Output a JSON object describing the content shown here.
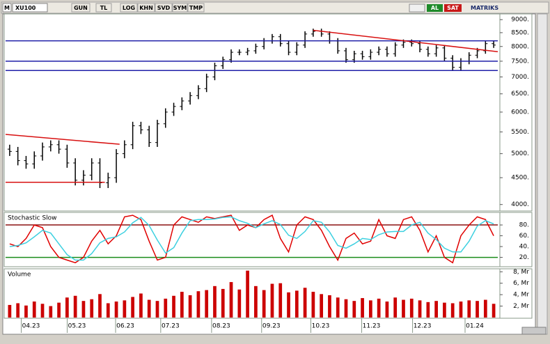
{
  "toolbar": {
    "symbol_menu": "M",
    "symbol": "XU100",
    "buttons": [
      "GUN",
      "TL",
      "LOG",
      "KHN",
      "SVD",
      "SYM",
      "TMP"
    ],
    "buy": "AL",
    "sell": "SAT",
    "brand": "MATRIKS"
  },
  "chart_data": [
    {
      "type": "ohlc",
      "color": "#000000",
      "log_scale": true,
      "xlim": [
        -0.5,
        59.5
      ],
      "ylim": [
        3900,
        9200
      ],
      "yticks": [
        {
          "value": 4000,
          "label": "4000."
        },
        {
          "value": 4500,
          "label": "4500."
        },
        {
          "value": 5000,
          "label": "5000."
        },
        {
          "value": 5500,
          "label": "5500."
        },
        {
          "value": 6000,
          "label": "6000."
        },
        {
          "value": 6500,
          "label": "6500."
        },
        {
          "value": 7000,
          "label": "7000."
        },
        {
          "value": 7500,
          "label": "7500."
        },
        {
          "value": 8000,
          "label": "8000."
        },
        {
          "value": 8500,
          "label": "8500."
        },
        {
          "value": 9000,
          "label": "9000."
        }
      ],
      "open": [
        5100,
        5050,
        4850,
        4780,
        4950,
        5150,
        5200,
        5100,
        4800,
        4450,
        4550,
        4800,
        4400,
        4500,
        5000,
        5200,
        5650,
        5550,
        5250,
        5700,
        6000,
        6150,
        6300,
        6450,
        6650,
        7000,
        7350,
        7550,
        7800,
        7800,
        7850,
        8000,
        8200,
        8350,
        8100,
        7800,
        8050,
        8450,
        8550,
        8450,
        8200,
        7850,
        7550,
        7750,
        7650,
        7800,
        7900,
        7750,
        8050,
        8150,
        8100,
        7900,
        7750,
        7950,
        7600,
        7300,
        7500,
        7700,
        7850,
        8100
      ],
      "high": [
        5200,
        5150,
        4950,
        5050,
        5250,
        5300,
        5300,
        5200,
        4900,
        4650,
        4900,
        4900,
        4600,
        5100,
        5300,
        5750,
        5750,
        5650,
        5800,
        6100,
        6250,
        6400,
        6550,
        6750,
        7100,
        7450,
        7650,
        7900,
        7900,
        7950,
        8100,
        8300,
        8450,
        8450,
        8200,
        8150,
        8550,
        8650,
        8650,
        8550,
        8300,
        7950,
        7850,
        7850,
        7900,
        8000,
        8000,
        8150,
        8250,
        8250,
        8200,
        8000,
        8050,
        8050,
        7700,
        7600,
        7800,
        7950,
        8200,
        8200
      ],
      "low": [
        4950,
        4750,
        4680,
        4680,
        4850,
        5050,
        5000,
        4700,
        4350,
        4350,
        4450,
        4300,
        4300,
        4400,
        4900,
        5100,
        5450,
        5150,
        5150,
        5600,
        5900,
        6050,
        6200,
        6350,
        6550,
        6900,
        7250,
        7450,
        7700,
        7700,
        7750,
        7900,
        8100,
        8000,
        7700,
        7700,
        7950,
        8350,
        8350,
        8100,
        7750,
        7450,
        7450,
        7550,
        7550,
        7700,
        7650,
        7650,
        7950,
        8000,
        7800,
        7650,
        7650,
        7500,
        7200,
        7200,
        7400,
        7600,
        7750,
        7950
      ],
      "close": [
        5050,
        4850,
        4780,
        4950,
        5150,
        5200,
        5100,
        4800,
        4450,
        4550,
        4800,
        4400,
        4500,
        5000,
        5200,
        5650,
        5550,
        5250,
        5700,
        6000,
        6150,
        6300,
        6450,
        6650,
        7000,
        7350,
        7550,
        7800,
        7800,
        7850,
        8000,
        8200,
        8350,
        8100,
        7800,
        8050,
        8450,
        8550,
        8450,
        8200,
        7850,
        7550,
        7750,
        7650,
        7800,
        7900,
        7750,
        8050,
        8150,
        8100,
        7900,
        7750,
        7950,
        7600,
        7300,
        7500,
        7700,
        7850,
        8100,
        8050
      ],
      "lines": [
        {
          "x": [
            -0.5,
            59.5
          ],
          "y": [
            8200,
            8200
          ],
          "color": "#1f1fa8"
        },
        {
          "x": [
            -0.5,
            59.5
          ],
          "y": [
            7500,
            7500
          ],
          "color": "#1f1fa8"
        },
        {
          "x": [
            -0.5,
            59.5
          ],
          "y": [
            7200,
            7200
          ],
          "color": "#1f1fa8"
        },
        {
          "x": [
            -0.5,
            11.6
          ],
          "y": [
            4410,
            4410
          ],
          "color": "#d81010"
        },
        {
          "x": [
            -0.5,
            13.4
          ],
          "y": [
            5440,
            5210
          ],
          "color": "#d81010"
        },
        {
          "x": [
            37.0,
            59.5
          ],
          "y": [
            8590,
            7820
          ],
          "color": "#d81010"
        }
      ]
    },
    {
      "type": "line",
      "title": "Stochastic Slow",
      "xlim": [
        -0.5,
        59.5
      ],
      "ylim": [
        4,
        102
      ],
      "yticks": [
        {
          "value": 20,
          "label": "20."
        },
        {
          "value": 40,
          "label": "40."
        },
        {
          "value": 60,
          "label": "60."
        },
        {
          "value": 80,
          "label": "80."
        }
      ],
      "hlines": [
        {
          "value": 80,
          "color": "#8b1010"
        },
        {
          "value": 20,
          "color": "#1a8c1a"
        }
      ],
      "series": [
        {
          "color": "#e00000",
          "values": [
            45,
            40,
            55,
            80,
            75,
            40,
            20,
            15,
            10,
            20,
            50,
            70,
            45,
            60,
            95,
            98,
            90,
            50,
            15,
            20,
            80,
            95,
            90,
            85,
            95,
            92,
            95,
            98,
            70,
            80,
            75,
            90,
            98,
            55,
            30,
            80,
            95,
            90,
            70,
            40,
            15,
            55,
            65,
            45,
            50,
            90,
            60,
            55,
            90,
            95,
            70,
            30,
            60,
            20,
            10,
            60,
            80,
            95,
            90,
            60
          ]
        },
        {
          "color": "#3cd0e0",
          "values": [
            40,
            42,
            47,
            58,
            70,
            65,
            45,
            25,
            15,
            15,
            27,
            47,
            55,
            58,
            67,
            84,
            94,
            79,
            52,
            28,
            38,
            65,
            88,
            90,
            90,
            91,
            94,
            95,
            88,
            83,
            75,
            82,
            88,
            81,
            61,
            55,
            68,
            88,
            85,
            67,
            42,
            37,
            45,
            55,
            53,
            62,
            67,
            68,
            68,
            80,
            85,
            65,
            53,
            37,
            30,
            30,
            50,
            78,
            88,
            82
          ]
        }
      ]
    },
    {
      "type": "bar",
      "title": "Volume",
      "color": "#cc0000",
      "xlim": [
        -0.5,
        59.5
      ],
      "ylim": [
        0,
        8.4
      ],
      "yticks": [
        {
          "value": 2,
          "label": "2, Mr"
        },
        {
          "value": 4,
          "label": "4, Mr"
        },
        {
          "value": 6,
          "label": "6, Mr"
        },
        {
          "value": 8,
          "label": "8, Mr"
        }
      ],
      "xticks": [
        {
          "value": 2.6,
          "label": "04.23"
        },
        {
          "value": 8.2,
          "label": "05.23"
        },
        {
          "value": 14.1,
          "label": "06.23"
        },
        {
          "value": 19.6,
          "label": "07.23"
        },
        {
          "value": 25.8,
          "label": "08.23"
        },
        {
          "value": 31.9,
          "label": "09.23"
        },
        {
          "value": 37.9,
          "label": "10.23"
        },
        {
          "value": 44.1,
          "label": "11.23"
        },
        {
          "value": 50.3,
          "label": "12.23"
        },
        {
          "value": 56.7,
          "label": "01.24"
        }
      ],
      "values": [
        2.2,
        2.5,
        2.1,
        2.8,
        2.4,
        2.0,
        2.6,
        3.5,
        3.8,
        2.9,
        3.2,
        4.1,
        2.5,
        2.8,
        3.0,
        3.6,
        4.2,
        3.1,
        2.9,
        3.3,
        3.8,
        4.5,
        3.9,
        4.6,
        4.8,
        5.5,
        5.0,
        6.2,
        4.9,
        8.2,
        5.5,
        4.8,
        5.9,
        6.0,
        4.4,
        4.7,
        5.2,
        4.5,
        4.1,
        3.9,
        3.5,
        3.2,
        2.9,
        3.4,
        3.0,
        3.3,
        2.8,
        3.5,
        3.1,
        3.3,
        3.0,
        2.7,
        2.9,
        2.6,
        2.5,
        2.8,
        3.0,
        2.9,
        3.1,
        2.4
      ]
    }
  ]
}
